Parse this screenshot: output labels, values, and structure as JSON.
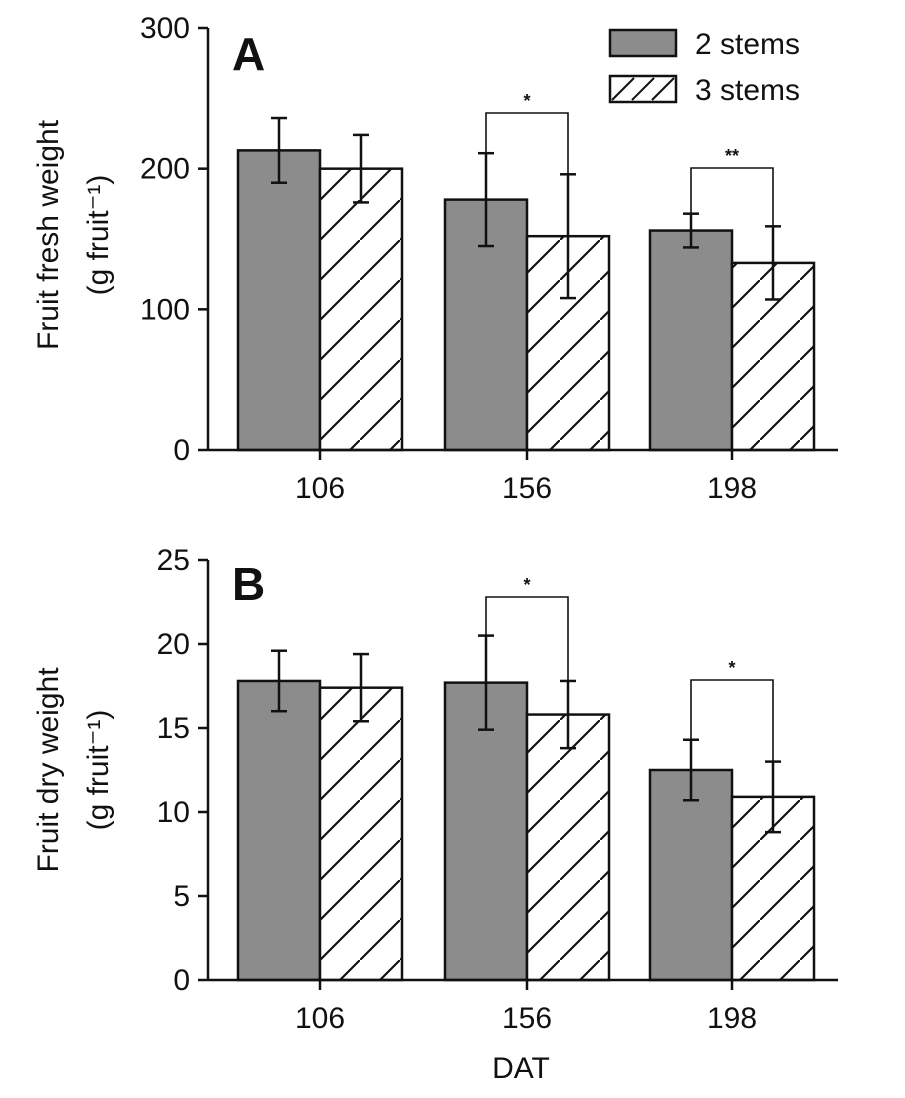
{
  "chart_data": [
    {
      "type": "bar",
      "panel": "A",
      "categories": [
        "106",
        "156",
        "198"
      ],
      "ylabel": "Fruit fresh weight",
      "ylabel_unit": "(g fruit⁻¹)",
      "xlabel": "",
      "ylim": [
        0,
        300
      ],
      "yticks": [
        0,
        100,
        200,
        300
      ],
      "legend_position": "top-right",
      "series": [
        {
          "name": "2 stems",
          "values": [
            213,
            178,
            156
          ],
          "errors": [
            23,
            33,
            12
          ],
          "fill": "#8c8c8c",
          "pattern": "solid"
        },
        {
          "name": "3 stems",
          "values": [
            200,
            152,
            133
          ],
          "errors": [
            24,
            44,
            26
          ],
          "fill": "#ffffff",
          "pattern": "hatch"
        }
      ],
      "significance": [
        {
          "category_index": 1,
          "label": "*"
        },
        {
          "category_index": 2,
          "label": "**"
        }
      ]
    },
    {
      "type": "bar",
      "panel": "B",
      "categories": [
        "106",
        "156",
        "198"
      ],
      "ylabel": "Fruit dry weight",
      "ylabel_unit": "(g fruit⁻¹)",
      "xlabel": "DAT",
      "ylim": [
        0,
        25
      ],
      "yticks": [
        0,
        5,
        10,
        15,
        20,
        25
      ],
      "series": [
        {
          "name": "2 stems",
          "values": [
            17.8,
            17.7,
            12.5
          ],
          "errors": [
            1.8,
            2.8,
            1.8
          ],
          "fill": "#8c8c8c",
          "pattern": "solid"
        },
        {
          "name": "3 stems",
          "values": [
            17.4,
            15.8,
            10.9
          ],
          "errors": [
            2.0,
            2.0,
            2.1
          ],
          "fill": "#ffffff",
          "pattern": "hatch"
        }
      ],
      "significance": [
        {
          "category_index": 1,
          "label": "*"
        },
        {
          "category_index": 2,
          "label": "*"
        }
      ]
    }
  ]
}
